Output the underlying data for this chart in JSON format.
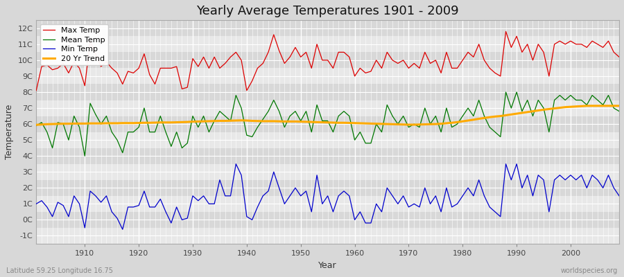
{
  "title": "Yearly Average Temperatures 1901 - 2009",
  "xlabel": "Year",
  "ylabel": "Temperature",
  "lat_lon_label": "Latitude 59.25 Longitude 16.75",
  "source_label": "worldspecies.org",
  "years": [
    1901,
    1902,
    1903,
    1904,
    1905,
    1906,
    1907,
    1908,
    1909,
    1910,
    1911,
    1912,
    1913,
    1914,
    1915,
    1916,
    1917,
    1918,
    1919,
    1920,
    1921,
    1922,
    1923,
    1924,
    1925,
    1926,
    1927,
    1928,
    1929,
    1930,
    1931,
    1932,
    1933,
    1934,
    1935,
    1936,
    1937,
    1938,
    1939,
    1940,
    1941,
    1942,
    1943,
    1944,
    1945,
    1946,
    1947,
    1948,
    1949,
    1950,
    1951,
    1952,
    1953,
    1954,
    1955,
    1956,
    1957,
    1958,
    1959,
    1960,
    1961,
    1962,
    1963,
    1964,
    1965,
    1966,
    1967,
    1968,
    1969,
    1970,
    1971,
    1972,
    1973,
    1974,
    1975,
    1976,
    1977,
    1978,
    1979,
    1980,
    1981,
    1982,
    1983,
    1984,
    1985,
    1986,
    1987,
    1988,
    1989,
    1990,
    1991,
    1992,
    1993,
    1994,
    1995,
    1996,
    1997,
    1998,
    1999,
    2000,
    2001,
    2002,
    2003,
    2004,
    2005,
    2006,
    2007,
    2008,
    2009
  ],
  "max_temp": [
    8.1,
    9.6,
    9.7,
    9.4,
    9.5,
    9.8,
    9.2,
    9.9,
    9.5,
    8.4,
    11.2,
    10.4,
    9.6,
    9.9,
    9.5,
    9.2,
    8.5,
    9.3,
    9.2,
    9.5,
    10.4,
    9.1,
    8.5,
    9.5,
    9.5,
    9.5,
    9.6,
    8.2,
    8.3,
    10.1,
    9.6,
    10.2,
    9.5,
    10.2,
    9.5,
    9.8,
    10.2,
    10.5,
    10.0,
    8.1,
    8.7,
    9.5,
    9.8,
    10.5,
    11.6,
    10.6,
    9.8,
    10.2,
    10.8,
    10.2,
    10.5,
    9.5,
    11.0,
    10.0,
    10.0,
    9.5,
    10.5,
    10.5,
    10.2,
    9.0,
    9.5,
    9.2,
    9.3,
    10.0,
    9.5,
    10.5,
    10.0,
    9.8,
    10.0,
    9.5,
    9.8,
    9.5,
    10.5,
    9.8,
    10.0,
    9.2,
    10.5,
    9.5,
    9.5,
    10.0,
    10.5,
    10.2,
    11.0,
    10.0,
    9.5,
    9.2,
    9.0,
    11.8,
    10.8,
    11.5,
    10.5,
    11.0,
    10.0,
    11.0,
    10.5,
    9.0,
    11.0,
    11.2,
    11.0,
    11.2,
    11.0,
    11.0,
    10.8,
    11.2,
    11.0,
    10.8,
    11.2,
    10.5,
    10.2
  ],
  "mean_temp": [
    5.9,
    6.1,
    5.5,
    4.5,
    6.1,
    6.0,
    5.0,
    6.5,
    5.8,
    4.0,
    7.3,
    6.6,
    6.0,
    6.5,
    5.5,
    5.0,
    4.2,
    5.5,
    5.5,
    5.8,
    7.0,
    5.5,
    5.5,
    6.5,
    5.5,
    4.6,
    5.5,
    4.5,
    4.8,
    6.5,
    5.8,
    6.5,
    5.5,
    6.2,
    6.8,
    6.5,
    6.2,
    7.8,
    7.0,
    5.3,
    5.2,
    5.8,
    6.3,
    6.8,
    7.5,
    6.8,
    5.8,
    6.5,
    6.8,
    6.2,
    6.8,
    5.5,
    7.2,
    6.2,
    6.2,
    5.5,
    6.5,
    6.8,
    6.5,
    5.0,
    5.5,
    4.8,
    4.8,
    6.0,
    5.5,
    7.2,
    6.5,
    6.0,
    6.5,
    5.8,
    6.0,
    5.8,
    7.0,
    6.0,
    6.5,
    5.5,
    7.0,
    5.8,
    6.0,
    6.5,
    7.0,
    6.5,
    7.5,
    6.5,
    5.8,
    5.5,
    5.2,
    8.0,
    7.0,
    8.0,
    6.8,
    7.5,
    6.5,
    7.5,
    7.0,
    5.5,
    7.5,
    7.8,
    7.5,
    7.8,
    7.5,
    7.5,
    7.2,
    7.8,
    7.5,
    7.2,
    7.8,
    7.0,
    6.8
  ],
  "min_temp": [
    1.0,
    1.2,
    0.8,
    0.2,
    1.1,
    0.9,
    0.2,
    1.5,
    1.0,
    -0.5,
    1.8,
    1.5,
    1.1,
    1.5,
    0.5,
    0.1,
    -0.6,
    0.8,
    0.8,
    0.9,
    1.8,
    0.8,
    0.8,
    1.3,
    0.5,
    -0.2,
    0.8,
    0.0,
    0.1,
    1.5,
    1.2,
    1.5,
    1.0,
    1.0,
    2.5,
    1.5,
    1.5,
    3.5,
    2.8,
    0.2,
    0.0,
    0.8,
    1.5,
    1.8,
    3.0,
    2.0,
    1.0,
    1.5,
    2.0,
    1.5,
    1.8,
    0.5,
    2.8,
    1.0,
    1.5,
    0.5,
    1.5,
    1.8,
    1.5,
    0.0,
    0.5,
    -0.2,
    -0.2,
    1.0,
    0.5,
    2.0,
    1.5,
    1.0,
    1.5,
    0.8,
    1.0,
    0.8,
    2.0,
    1.0,
    1.5,
    0.5,
    2.0,
    0.8,
    1.0,
    1.5,
    2.0,
    1.5,
    2.5,
    1.5,
    0.8,
    0.5,
    0.2,
    3.5,
    2.5,
    3.5,
    2.0,
    2.8,
    1.5,
    2.8,
    2.5,
    0.5,
    2.5,
    2.8,
    2.5,
    2.8,
    2.5,
    2.8,
    2.0,
    2.8,
    2.5,
    2.0,
    2.8,
    2.0,
    1.5
  ],
  "trend_years": [
    1901,
    1902,
    1903,
    1904,
    1905,
    1906,
    1907,
    1908,
    1909,
    1910,
    1911,
    1912,
    1913,
    1914,
    1915,
    1916,
    1917,
    1918,
    1919,
    1920,
    1921,
    1922,
    1923,
    1924,
    1925,
    1926,
    1927,
    1928,
    1929,
    1930,
    1931,
    1932,
    1933,
    1934,
    1935,
    1936,
    1937,
    1938,
    1939,
    1940,
    1941,
    1942,
    1943,
    1944,
    1945,
    1946,
    1947,
    1948,
    1949,
    1950,
    1951,
    1952,
    1953,
    1954,
    1955,
    1956,
    1957,
    1958,
    1959,
    1960,
    1961,
    1962,
    1963,
    1964,
    1965,
    1966,
    1967,
    1968,
    1969,
    1970,
    1971,
    1972,
    1973,
    1974,
    1975,
    1976,
    1977,
    1978,
    1979,
    1980,
    1981,
    1982,
    1983,
    1984,
    1985,
    1986,
    1987,
    1988,
    1989,
    1990,
    1991,
    1992,
    1993,
    1994,
    1995,
    1996,
    1997,
    1998,
    1999,
    2000,
    2001,
    2002,
    2003,
    2004,
    2005,
    2006,
    2007,
    2008,
    2009
  ],
  "trend_values": [
    5.95,
    5.97,
    5.99,
    6.0,
    6.01,
    6.02,
    6.02,
    6.03,
    6.03,
    6.03,
    6.04,
    6.04,
    6.04,
    6.05,
    6.05,
    6.05,
    6.06,
    6.06,
    6.06,
    6.07,
    6.08,
    6.08,
    6.09,
    6.1,
    6.1,
    6.1,
    6.11,
    6.12,
    6.13,
    6.15,
    6.16,
    6.17,
    6.18,
    6.19,
    6.2,
    6.2,
    6.21,
    6.22,
    6.23,
    6.22,
    6.2,
    6.19,
    6.18,
    6.18,
    6.18,
    6.17,
    6.16,
    6.16,
    6.16,
    6.15,
    6.14,
    6.13,
    6.12,
    6.11,
    6.1,
    6.09,
    6.08,
    6.08,
    6.07,
    6.06,
    6.05,
    6.04,
    6.03,
    6.02,
    6.01,
    6.0,
    5.99,
    5.98,
    5.97,
    5.96,
    5.96,
    5.97,
    5.98,
    5.99,
    6.0,
    6.02,
    6.05,
    6.08,
    6.12,
    6.17,
    6.22,
    6.27,
    6.33,
    6.38,
    6.43,
    6.47,
    6.5,
    6.55,
    6.6,
    6.65,
    6.7,
    6.75,
    6.8,
    6.85,
    6.9,
    6.94,
    6.98,
    7.02,
    7.06,
    7.08,
    7.1,
    7.12,
    7.14,
    7.14,
    7.14,
    7.14,
    7.14,
    7.14,
    7.14
  ],
  "max_color": "#dd0000",
  "mean_color": "#007700",
  "min_color": "#0000cc",
  "trend_color": "#ffaa00",
  "bg_color": "#d8d8d8",
  "plot_bg_color_light": "#e8e8e8",
  "plot_bg_color_dark": "#d8d8d8",
  "grid_color": "#ffffff",
  "ylim": [
    -1.5,
    12.5
  ],
  "yticks": [
    -1,
    0,
    1,
    2,
    3,
    4,
    5,
    6,
    7,
    8,
    9,
    10,
    11,
    12
  ],
  "ytick_labels": [
    "-1C",
    "0C",
    "1C",
    "2C",
    "3C",
    "4C",
    "5C",
    "6C",
    "7C",
    "8C",
    "9C",
    "10C",
    "11C",
    "12C"
  ],
  "xtick_start": 1910,
  "xtick_end": 2000,
  "xtick_step": 10,
  "title_fontsize": 13,
  "axis_label_fontsize": 9,
  "tick_fontsize": 8,
  "legend_fontsize": 8
}
